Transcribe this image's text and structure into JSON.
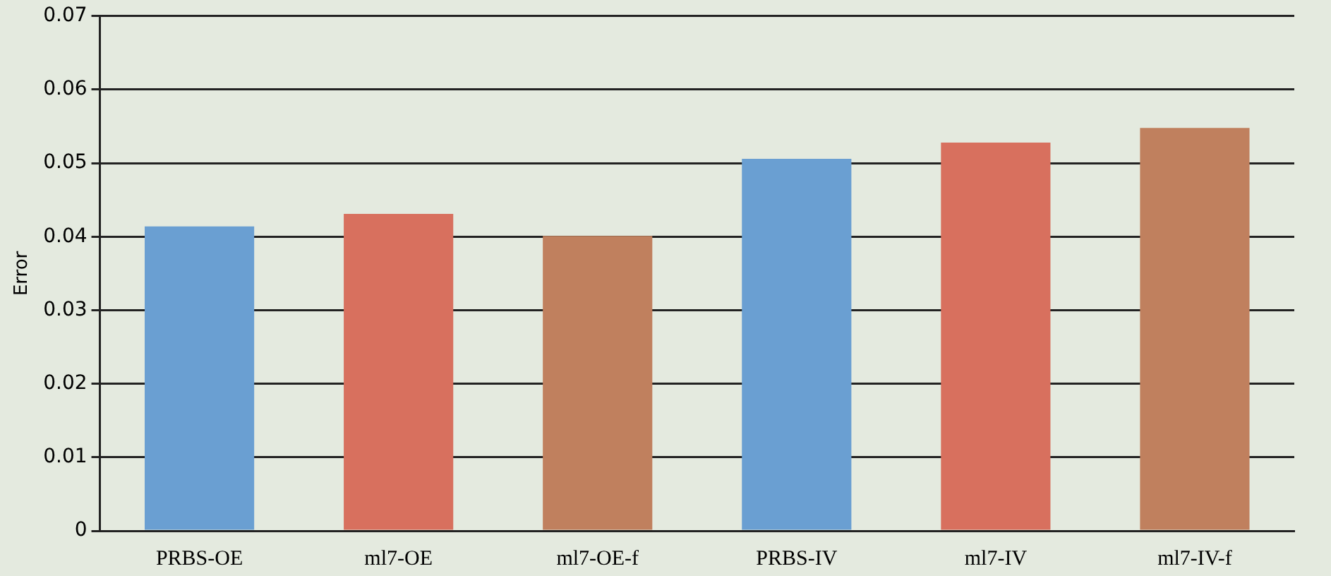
{
  "chart_data": {
    "type": "bar",
    "ylabel": "Error",
    "categories": [
      "PRBS-OE",
      "ml7-OE",
      "ml7-OE-f",
      "PRBS-IV",
      "ml7-IV",
      "ml7-IV-f"
    ],
    "values": [
      0.0414,
      0.0431,
      0.0401,
      0.0506,
      0.0528,
      0.0548
    ],
    "colors": [
      "#6a9fd2",
      "#d8705e",
      "#c0805e",
      "#6a9fd2",
      "#d8705e",
      "#c0805e"
    ],
    "ylim": [
      0,
      0.07
    ],
    "yticks": [
      0,
      0.01,
      0.02,
      0.03,
      0.04,
      0.05,
      0.06,
      0.07
    ],
    "grid": "y"
  }
}
